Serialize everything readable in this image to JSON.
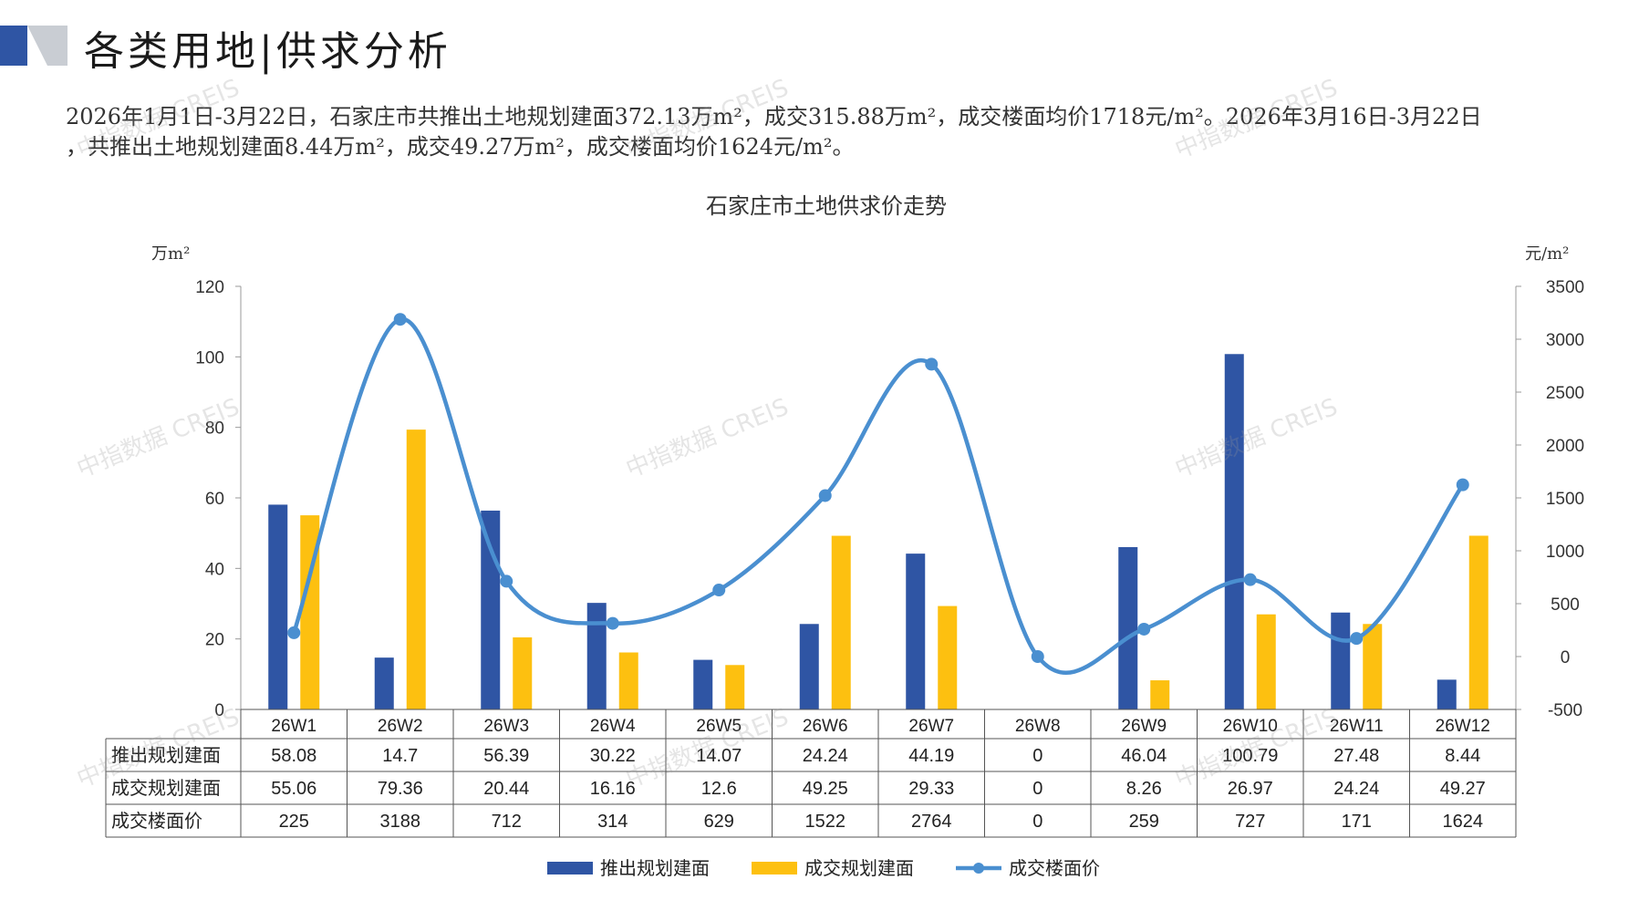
{
  "header": {
    "title": "各类用地|供求分析",
    "summary_line1": "2026年1月1日-3月22日，石家庄市共推出土地规划建面372.13万m²，成交315.88万m²，成交楼面均价1718元/m²。2026年3月16日-3月22日",
    "summary_line2": "，共推出土地规划建面8.44万m²，成交49.27万m²，成交楼面均价1624元/m²。"
  },
  "watermark": "中指数据 CREIS",
  "colors": {
    "supply": "#2f55a4",
    "deal": "#fdc010",
    "price": "#4a8fd0",
    "deco_dark": "#2f55a4",
    "deco_light": "#c9cdd3"
  },
  "chart_data": {
    "type": "bar",
    "title": "石家庄市土地供求价走势",
    "y_left_unit": "万m²",
    "y_right_unit": "元/m²",
    "y_left_range": [
      0,
      120
    ],
    "y_left_ticks": [
      0,
      20,
      40,
      60,
      80,
      100,
      120
    ],
    "y_right_range": [
      -500,
      3500
    ],
    "y_right_ticks": [
      -500,
      0,
      500,
      1000,
      1500,
      2000,
      2500,
      3000,
      3500
    ],
    "categories": [
      "26W1",
      "26W2",
      "26W3",
      "26W4",
      "26W5",
      "26W6",
      "26W7",
      "26W8",
      "26W9",
      "26W10",
      "26W11",
      "26W12"
    ],
    "series": [
      {
        "name": "推出规划建面",
        "type": "bar",
        "axis": "left",
        "values": [
          58.08,
          14.7,
          56.39,
          30.22,
          14.07,
          24.24,
          44.19,
          0,
          46.04,
          100.79,
          27.48,
          8.44
        ],
        "labels": [
          "58.08",
          "14.7",
          "56.39",
          "30.22",
          "14.07",
          "24.24",
          "44.19",
          "0",
          "46.04",
          "100.79",
          "27.48",
          "8.44"
        ]
      },
      {
        "name": "成交规划建面",
        "type": "bar",
        "axis": "left",
        "values": [
          55.06,
          79.36,
          20.44,
          16.16,
          12.6,
          49.25,
          29.33,
          0,
          8.26,
          26.97,
          24.24,
          49.27
        ],
        "labels": [
          "55.06",
          "79.36",
          "20.44",
          "16.16",
          "12.6",
          "49.25",
          "29.33",
          "0",
          "8.26",
          "26.97",
          "24.24",
          "49.27"
        ]
      },
      {
        "name": "成交楼面价",
        "type": "line",
        "axis": "right",
        "values": [
          225,
          3188,
          712,
          314,
          629,
          1522,
          2764,
          0,
          259,
          727,
          171,
          1624
        ],
        "labels": [
          "225",
          "3188",
          "712",
          "314",
          "629",
          "1522",
          "2764",
          "0",
          "259",
          "727",
          "171",
          "1624"
        ]
      }
    ],
    "legend_position": "bottom",
    "grid": false
  }
}
